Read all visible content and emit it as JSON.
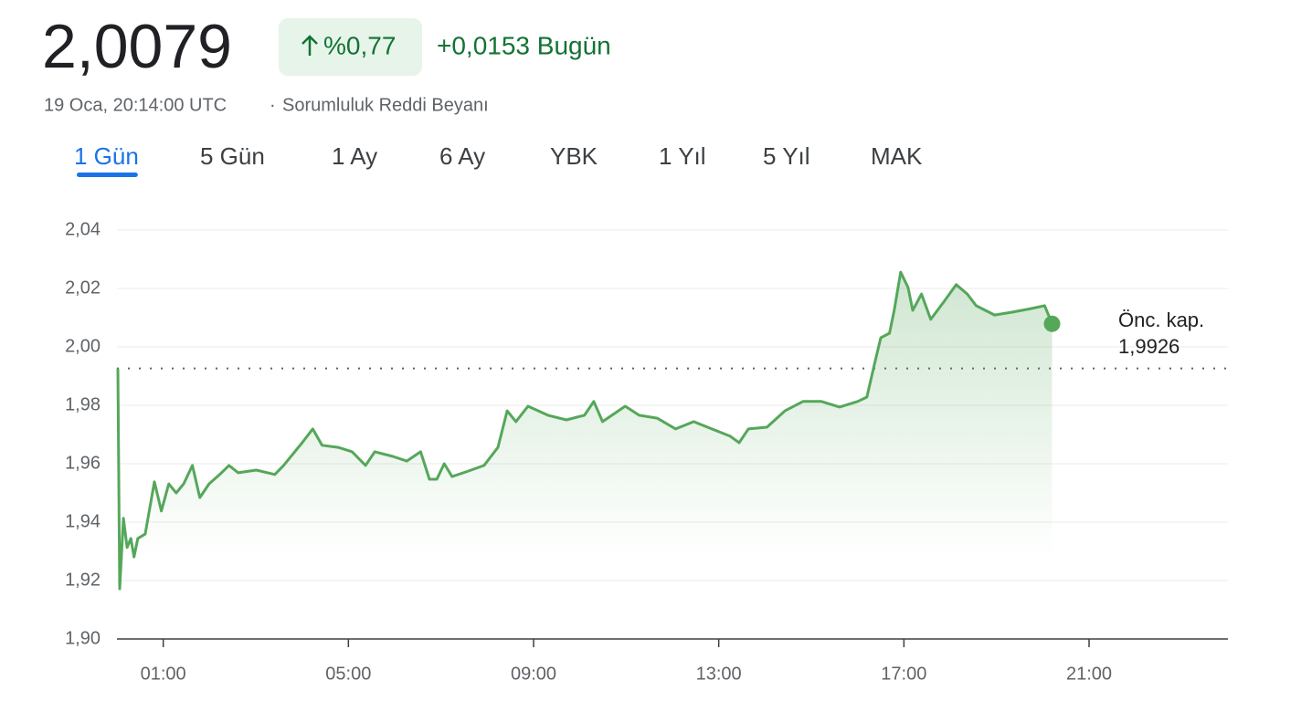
{
  "quote": {
    "price": "2,0079",
    "change_pct": "%0,77",
    "change_abs": "+0,0153 Bugün",
    "timestamp": "19 Oca, 20:14:00 UTC",
    "separator": "·",
    "disclaimer": "Sorumluluk Reddi Beyanı"
  },
  "tabs": {
    "items": [
      "1 Gün",
      "5 Gün",
      "1 Ay",
      "6 Ay",
      "YBK",
      "1 Yıl",
      "5 Yıl",
      "MAK"
    ],
    "active": 0
  },
  "chart_data": {
    "type": "line",
    "color": "#55a75a",
    "grid": true,
    "x": [
      0.02,
      0.06,
      0.14,
      0.22,
      0.3,
      0.37,
      0.45,
      0.61,
      0.81,
      0.96,
      1.12,
      1.28,
      1.44,
      1.63,
      1.79,
      1.99,
      2.22,
      2.42,
      2.62,
      3.01,
      3.41,
      3.6,
      4.0,
      4.23,
      4.43,
      4.78,
      5.08,
      5.37,
      5.57,
      5.96,
      6.26,
      6.56,
      6.75,
      6.91,
      7.07,
      7.24,
      7.54,
      7.93,
      8.23,
      8.43,
      8.62,
      8.88,
      9.31,
      9.71,
      10.1,
      10.3,
      10.49,
      10.98,
      11.28,
      11.67,
      12.07,
      12.46,
      12.85,
      13.25,
      13.44,
      13.64,
      14.04,
      14.43,
      14.82,
      15.22,
      15.61,
      16.0,
      16.2,
      16.36,
      16.5,
      16.69,
      16.79,
      16.93,
      17.09,
      17.19,
      17.38,
      17.58,
      17.87,
      18.13,
      18.37,
      18.56,
      18.76,
      18.96,
      19.35,
      19.74,
      20.04,
      20.2
    ],
    "values": [
      1.9926,
      1.9172,
      1.9413,
      1.9313,
      1.9344,
      1.9281,
      1.9344,
      1.9359,
      1.9538,
      1.9438,
      1.9531,
      1.95,
      1.9531,
      1.9594,
      1.9484,
      1.9531,
      1.9563,
      1.9594,
      1.9569,
      1.9578,
      1.9563,
      1.9594,
      1.9672,
      1.9719,
      1.9663,
      1.9656,
      1.9641,
      1.9594,
      1.9641,
      1.9625,
      1.9609,
      1.9641,
      1.9547,
      1.9547,
      1.96,
      1.9556,
      1.9572,
      1.9594,
      1.9656,
      1.9781,
      1.9744,
      1.9797,
      1.9766,
      1.975,
      1.9766,
      1.9813,
      1.9744,
      1.9797,
      1.9766,
      1.9756,
      1.9719,
      1.9744,
      1.9719,
      1.9694,
      1.9672,
      1.9719,
      1.9725,
      1.9781,
      1.9813,
      1.9813,
      1.9794,
      1.9813,
      1.9828,
      1.9938,
      2.0031,
      2.0047,
      2.0125,
      2.0256,
      2.0203,
      2.0125,
      2.0181,
      2.0094,
      2.0156,
      2.0213,
      2.0181,
      2.0141,
      2.0125,
      2.0109,
      2.0119,
      2.0131,
      2.0141,
      2.0079
    ],
    "xlim": [
      0,
      24
    ],
    "xticks": [
      {
        "value": 1,
        "label": "01:00"
      },
      {
        "value": 5,
        "label": "05:00"
      },
      {
        "value": 9,
        "label": "09:00"
      },
      {
        "value": 13,
        "label": "13:00"
      },
      {
        "value": 17,
        "label": "17:00"
      },
      {
        "value": 21,
        "label": "21:00"
      }
    ],
    "ylim": [
      1.9,
      2.04
    ],
    "yticks": [
      {
        "value": 1.9,
        "label": "1,90"
      },
      {
        "value": 1.92,
        "label": "1,92"
      },
      {
        "value": 1.94,
        "label": "1,94"
      },
      {
        "value": 1.96,
        "label": "1,96"
      },
      {
        "value": 1.98,
        "label": "1,98"
      },
      {
        "value": 2.0,
        "label": "2,00"
      },
      {
        "value": 2.02,
        "label": "2,02"
      },
      {
        "value": 2.04,
        "label": "2,04"
      }
    ],
    "previous_close": {
      "label": "Önc. kap.",
      "value": 1.9926,
      "value_label": "1,9926"
    }
  }
}
